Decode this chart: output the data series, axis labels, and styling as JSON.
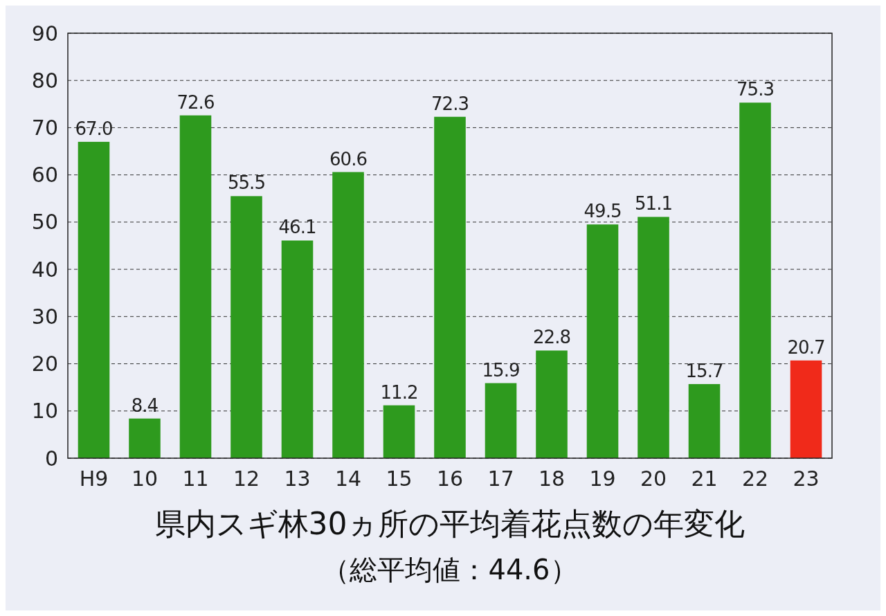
{
  "chart_data": {
    "type": "bar",
    "title": "県内スギ林30ヵ所の平均着花点数の年変化",
    "subtitle": "（総平均値：44.6）",
    "categories": [
      "H9",
      "10",
      "11",
      "12",
      "13",
      "14",
      "15",
      "16",
      "17",
      "18",
      "19",
      "20",
      "21",
      "22",
      "23"
    ],
    "values": [
      67.0,
      8.4,
      72.6,
      55.5,
      46.1,
      60.6,
      11.2,
      72.3,
      15.9,
      22.8,
      49.5,
      51.1,
      15.7,
      75.3,
      20.7
    ],
    "value_labels": [
      "67.0",
      "8.4",
      "72.6",
      "55.5",
      "46.1",
      "60.6",
      "11.2",
      "72.3",
      "15.9",
      "22.8",
      "49.5",
      "51.1",
      "15.7",
      "75.3",
      "20.7"
    ],
    "colors": [
      "#2e9a1e",
      "#2e9a1e",
      "#2e9a1e",
      "#2e9a1e",
      "#2e9a1e",
      "#2e9a1e",
      "#2e9a1e",
      "#2e9a1e",
      "#2e9a1e",
      "#2e9a1e",
      "#2e9a1e",
      "#2e9a1e",
      "#2e9a1e",
      "#2e9a1e",
      "#f02a1a"
    ],
    "ylim": [
      0,
      90
    ],
    "yticks": [
      0,
      10,
      20,
      30,
      40,
      50,
      60,
      70,
      80,
      90
    ],
    "grid": "y"
  }
}
